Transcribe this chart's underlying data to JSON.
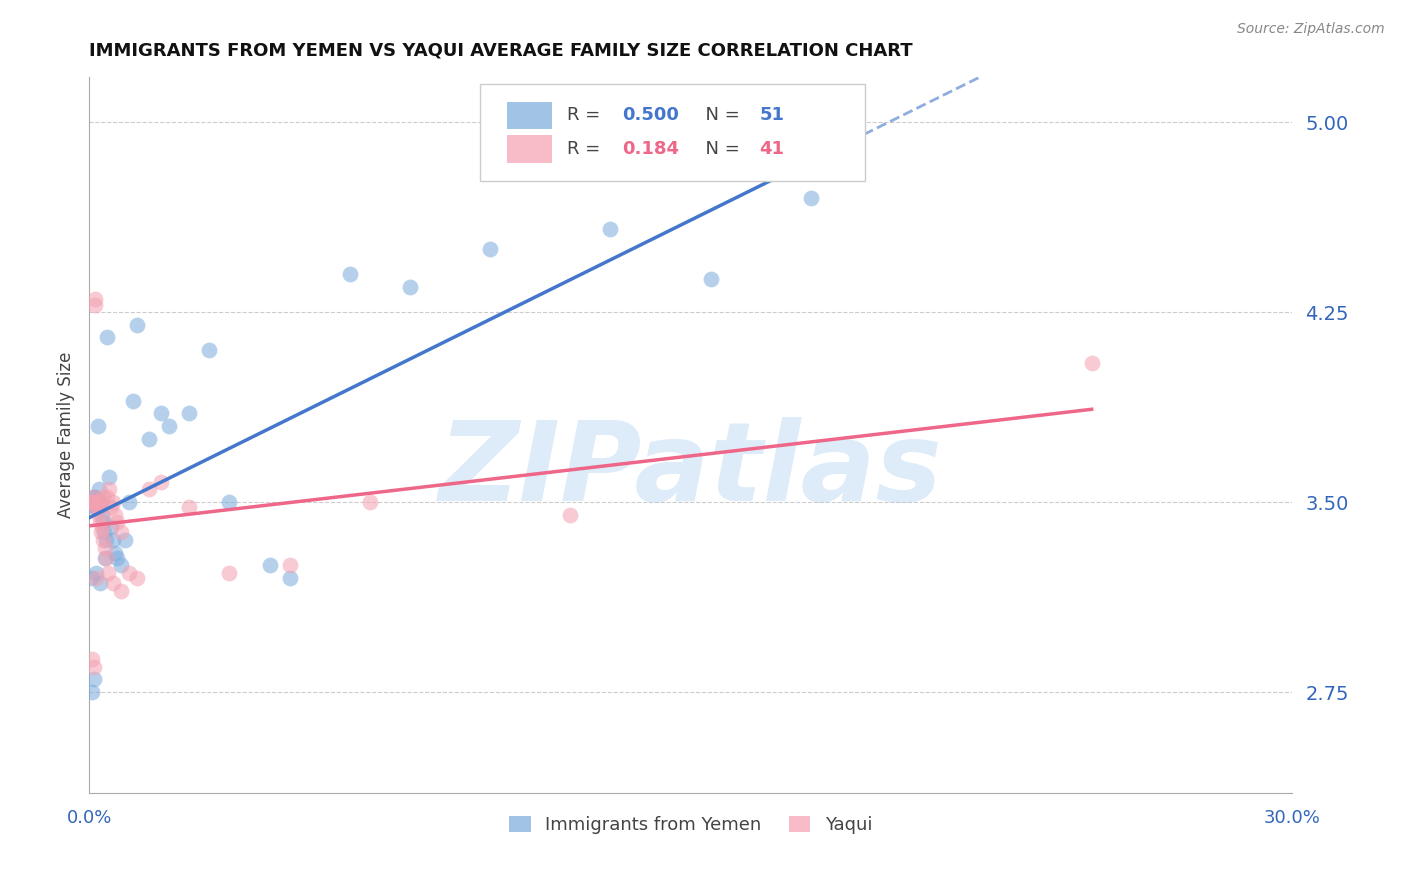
{
  "title": "IMMIGRANTS FROM YEMEN VS YAQUI AVERAGE FAMILY SIZE CORRELATION CHART",
  "source": "Source: ZipAtlas.com",
  "ylabel": "Average Family Size",
  "y_ticks": [
    2.75,
    3.5,
    4.25,
    5.0
  ],
  "x_min": 0.0,
  "x_max": 30.0,
  "y_min": 2.35,
  "y_max": 5.18,
  "blue_R": 0.5,
  "blue_N": 51,
  "pink_R": 0.184,
  "pink_N": 41,
  "blue_color": "#7AABDC",
  "pink_color": "#F4A0B0",
  "blue_line_color": "#4477CC",
  "pink_line_color": "#EE6688",
  "watermark": "ZIPatlas",
  "watermark_color": "#AACCEE",
  "background_color": "#FFFFFF",
  "grid_color": "#CCCCCC",
  "blue_x": [
    0.05,
    0.08,
    0.1,
    0.1,
    0.12,
    0.13,
    0.15,
    0.15,
    0.18,
    0.2,
    0.22,
    0.22,
    0.25,
    0.25,
    0.28,
    0.3,
    0.32,
    0.35,
    0.38,
    0.42,
    0.45,
    0.5,
    0.55,
    0.6,
    0.65,
    0.7,
    0.8,
    0.9,
    1.0,
    1.1,
    1.2,
    1.5,
    1.8,
    2.0,
    2.5,
    3.0,
    3.5,
    4.5,
    5.0,
    6.5,
    8.0,
    10.0,
    13.0,
    15.5,
    18.0,
    0.05,
    0.08,
    0.12,
    0.18,
    0.28,
    0.4
  ],
  "blue_y": [
    3.5,
    3.5,
    3.5,
    3.52,
    3.48,
    3.5,
    3.5,
    3.52,
    3.48,
    3.5,
    3.8,
    3.5,
    3.5,
    3.55,
    3.48,
    3.5,
    3.45,
    3.42,
    3.38,
    3.35,
    4.15,
    3.6,
    3.4,
    3.35,
    3.3,
    3.28,
    3.25,
    3.35,
    3.5,
    3.9,
    4.2,
    3.75,
    3.85,
    3.8,
    3.85,
    4.1,
    3.5,
    3.25,
    3.2,
    4.4,
    4.35,
    4.5,
    4.58,
    4.38,
    4.7,
    3.2,
    2.75,
    2.8,
    3.22,
    3.18,
    3.28
  ],
  "pink_x": [
    0.05,
    0.08,
    0.1,
    0.12,
    0.15,
    0.15,
    0.18,
    0.2,
    0.22,
    0.25,
    0.28,
    0.3,
    0.32,
    0.35,
    0.4,
    0.42,
    0.45,
    0.5,
    0.55,
    0.6,
    0.65,
    0.7,
    0.8,
    1.0,
    1.2,
    1.5,
    1.8,
    2.5,
    3.5,
    5.0,
    7.0,
    12.0,
    0.08,
    0.12,
    0.18,
    0.25,
    0.35,
    0.48,
    0.6,
    0.8,
    25.0
  ],
  "pink_y": [
    3.5,
    3.5,
    3.5,
    3.52,
    4.3,
    4.28,
    3.48,
    3.5,
    3.48,
    3.45,
    3.42,
    3.38,
    3.4,
    3.35,
    3.32,
    3.28,
    3.52,
    3.55,
    3.48,
    3.5,
    3.45,
    3.42,
    3.38,
    3.22,
    3.2,
    3.55,
    3.58,
    3.48,
    3.22,
    3.25,
    3.5,
    3.45,
    2.88,
    2.85,
    3.2,
    3.5,
    3.52,
    3.22,
    3.18,
    3.15,
    4.05
  ]
}
